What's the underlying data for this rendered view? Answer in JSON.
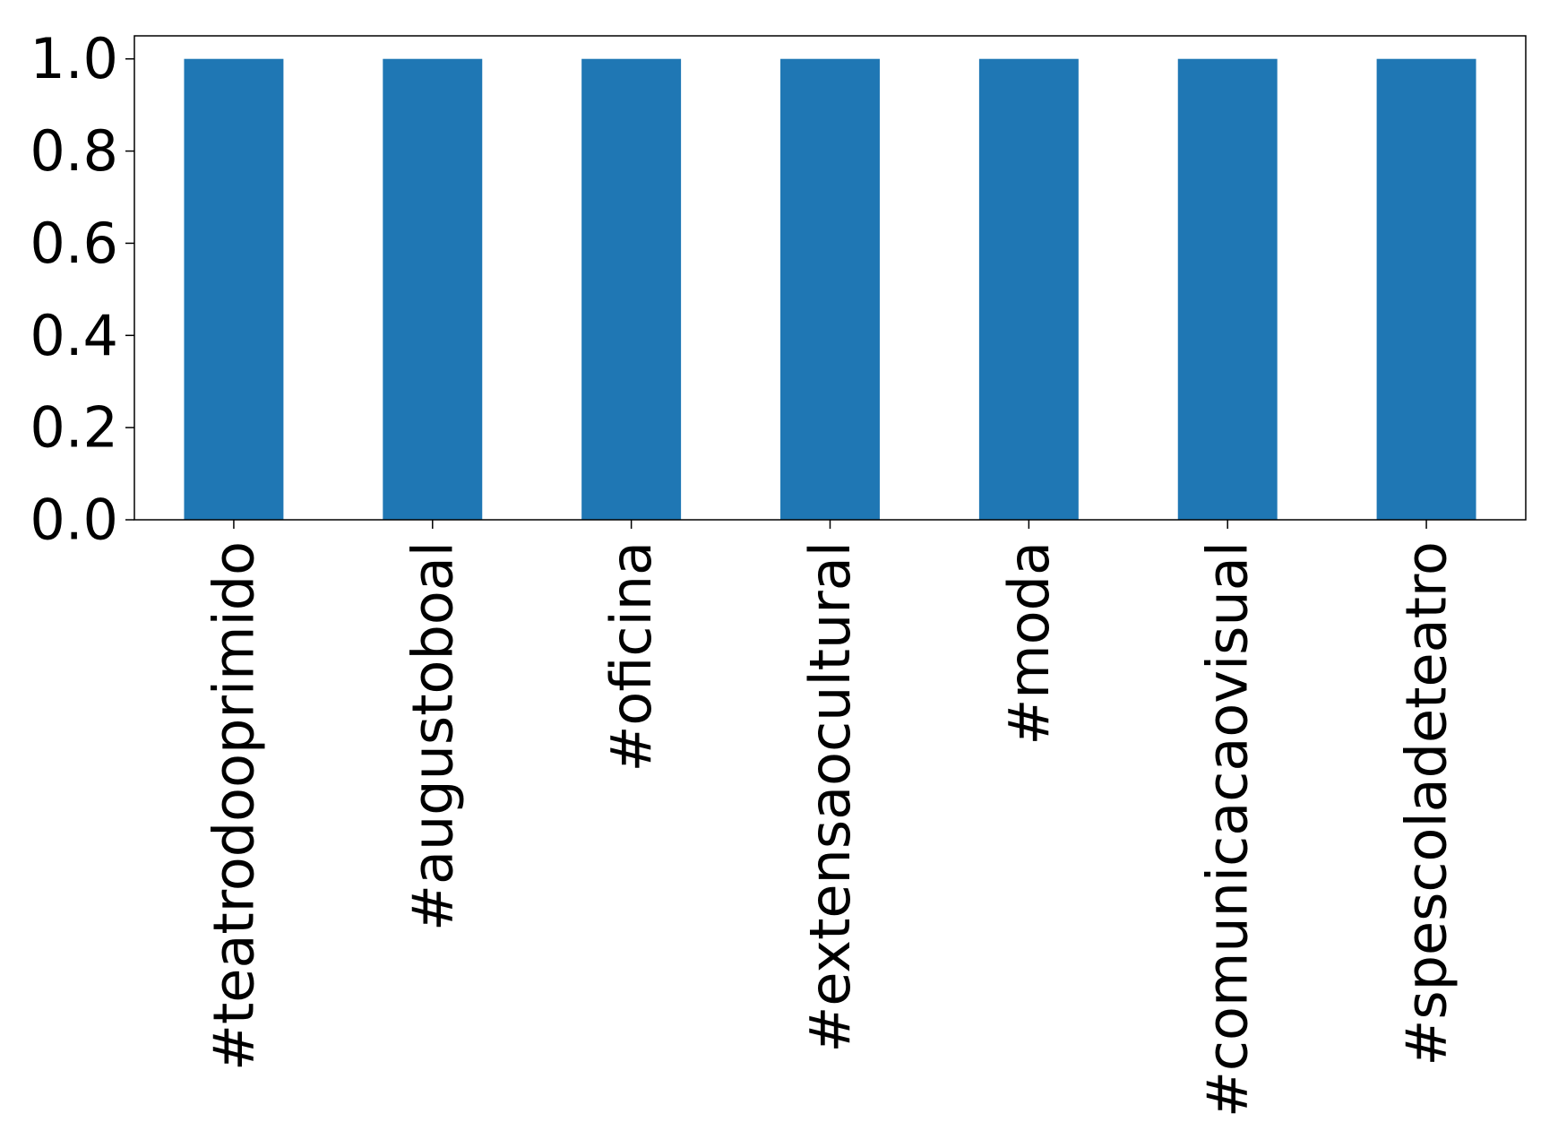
{
  "chart_data": {
    "type": "bar",
    "categories": [
      "#teatrodooprimido",
      "#augustoboal",
      "#oficina",
      "#extensaocultural",
      "#moda",
      "#comunicacaovisual",
      "#spescoladeteatro"
    ],
    "values": [
      1.0,
      1.0,
      1.0,
      1.0,
      1.0,
      1.0,
      1.0
    ],
    "ylim": [
      0,
      1.05
    ],
    "yticks": [
      "0.0",
      "0.2",
      "0.4",
      "0.6",
      "0.8",
      "1.0"
    ],
    "title": "",
    "xlabel": "",
    "ylabel": "",
    "grid": false,
    "bar_color": "#1f77b4",
    "x_tick_rotation": "vertical"
  }
}
